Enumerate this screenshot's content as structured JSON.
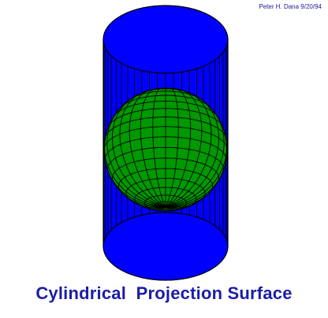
{
  "credit": "Peter H. Dana 9/20/94",
  "caption": "Cylindrical  Projection Surface",
  "colors": {
    "cylinder": "#0000ff",
    "globe": "#009900",
    "lines": "#000000",
    "caption": "#1c1ca8",
    "credit": "#1a1aa0"
  },
  "icons": [
    "cylinder-surface",
    "globe-sphere"
  ]
}
